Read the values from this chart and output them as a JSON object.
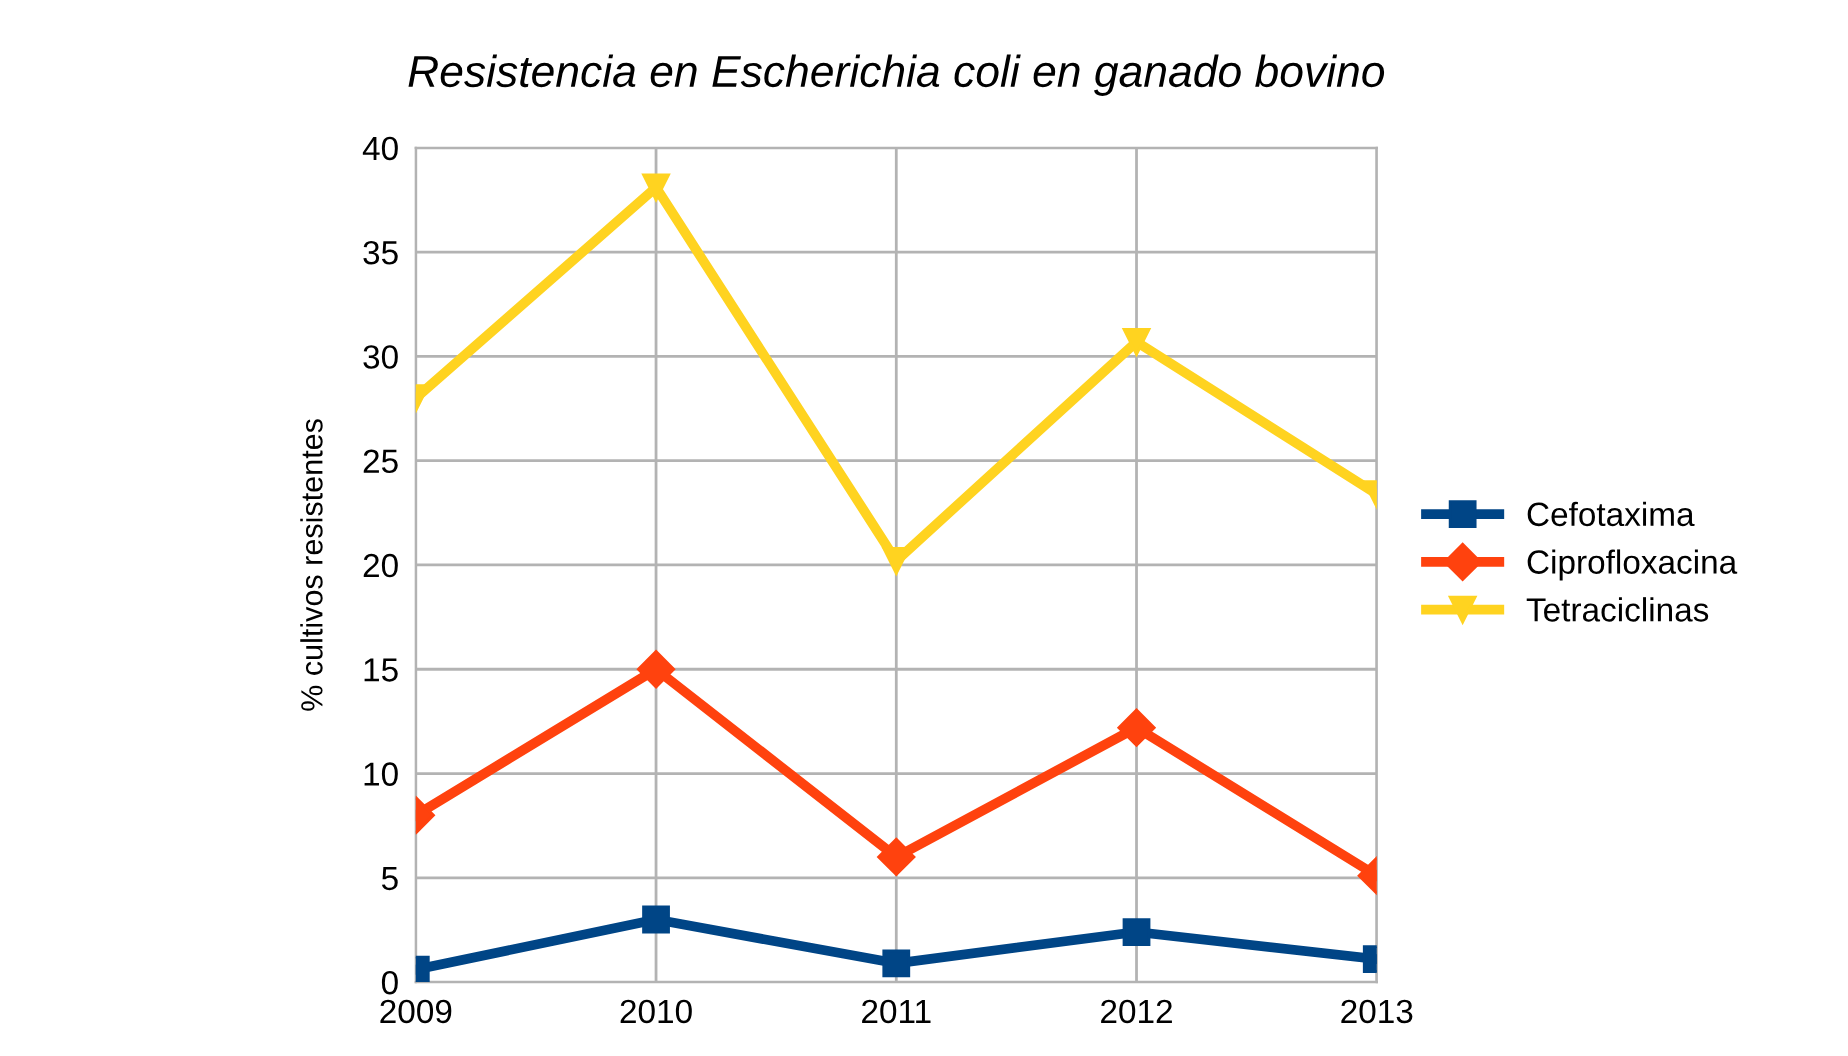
{
  "chart_data": {
    "type": "line",
    "title": "Resistencia en Escherichia coli en ganado bovino",
    "ylabel": "% cultivos resistentes",
    "categories": [
      "2009",
      "2010",
      "2011",
      "2012",
      "2013"
    ],
    "series": [
      {
        "name": "Cefotaxima",
        "color": "#004586",
        "marker": "square",
        "values": [
          0.6,
          3.0,
          0.9,
          2.4,
          1.1
        ]
      },
      {
        "name": "Ciprofloxacina",
        "color": "#ff420e",
        "marker": "diamond",
        "values": [
          8.0,
          15.0,
          6.0,
          12.2,
          5.1
        ]
      },
      {
        "name": "Tetraciclinas",
        "color": "#ffd320",
        "marker": "triangle",
        "values": [
          28.0,
          38.1,
          20.2,
          30.7,
          23.4
        ]
      }
    ],
    "ylim": [
      0,
      40
    ],
    "yticks": [
      0,
      5,
      10,
      15,
      20,
      25,
      30,
      35,
      40
    ],
    "grid": true,
    "legend": "right",
    "line_style": "solid"
  }
}
